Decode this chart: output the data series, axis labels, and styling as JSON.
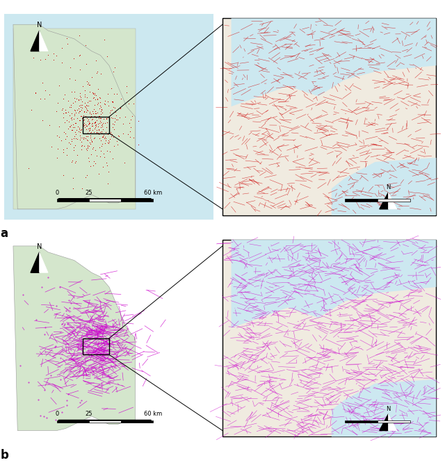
{
  "figure_width": 6.4,
  "figure_height": 6.82,
  "background_color": "#ffffff",
  "panel_a": {
    "label": "a",
    "main_map_bg": "#cce8f0",
    "land_color": "#d8e8d0",
    "network_color": "#cc0000",
    "scalebar_text": "0   25   60 km",
    "inset_bg": "#cce8f0",
    "inset_land": "#f5f0e8",
    "north_arrow": true
  },
  "panel_b": {
    "label": "b",
    "main_map_bg": "#cce8f0",
    "land_color": "#d8e8d0",
    "network_color": "#cc00cc",
    "scalebar_text": "0   25   60 km",
    "inset_bg": "#cce8f0",
    "inset_land": "#f5f0e8",
    "north_arrow": true
  },
  "caption_color": "#333333",
  "caption_fontsize": 8,
  "map_bg_color": "#cce8f0",
  "land_bg": "#d4e6cc",
  "inset_land_bg": "#f0ebe0"
}
